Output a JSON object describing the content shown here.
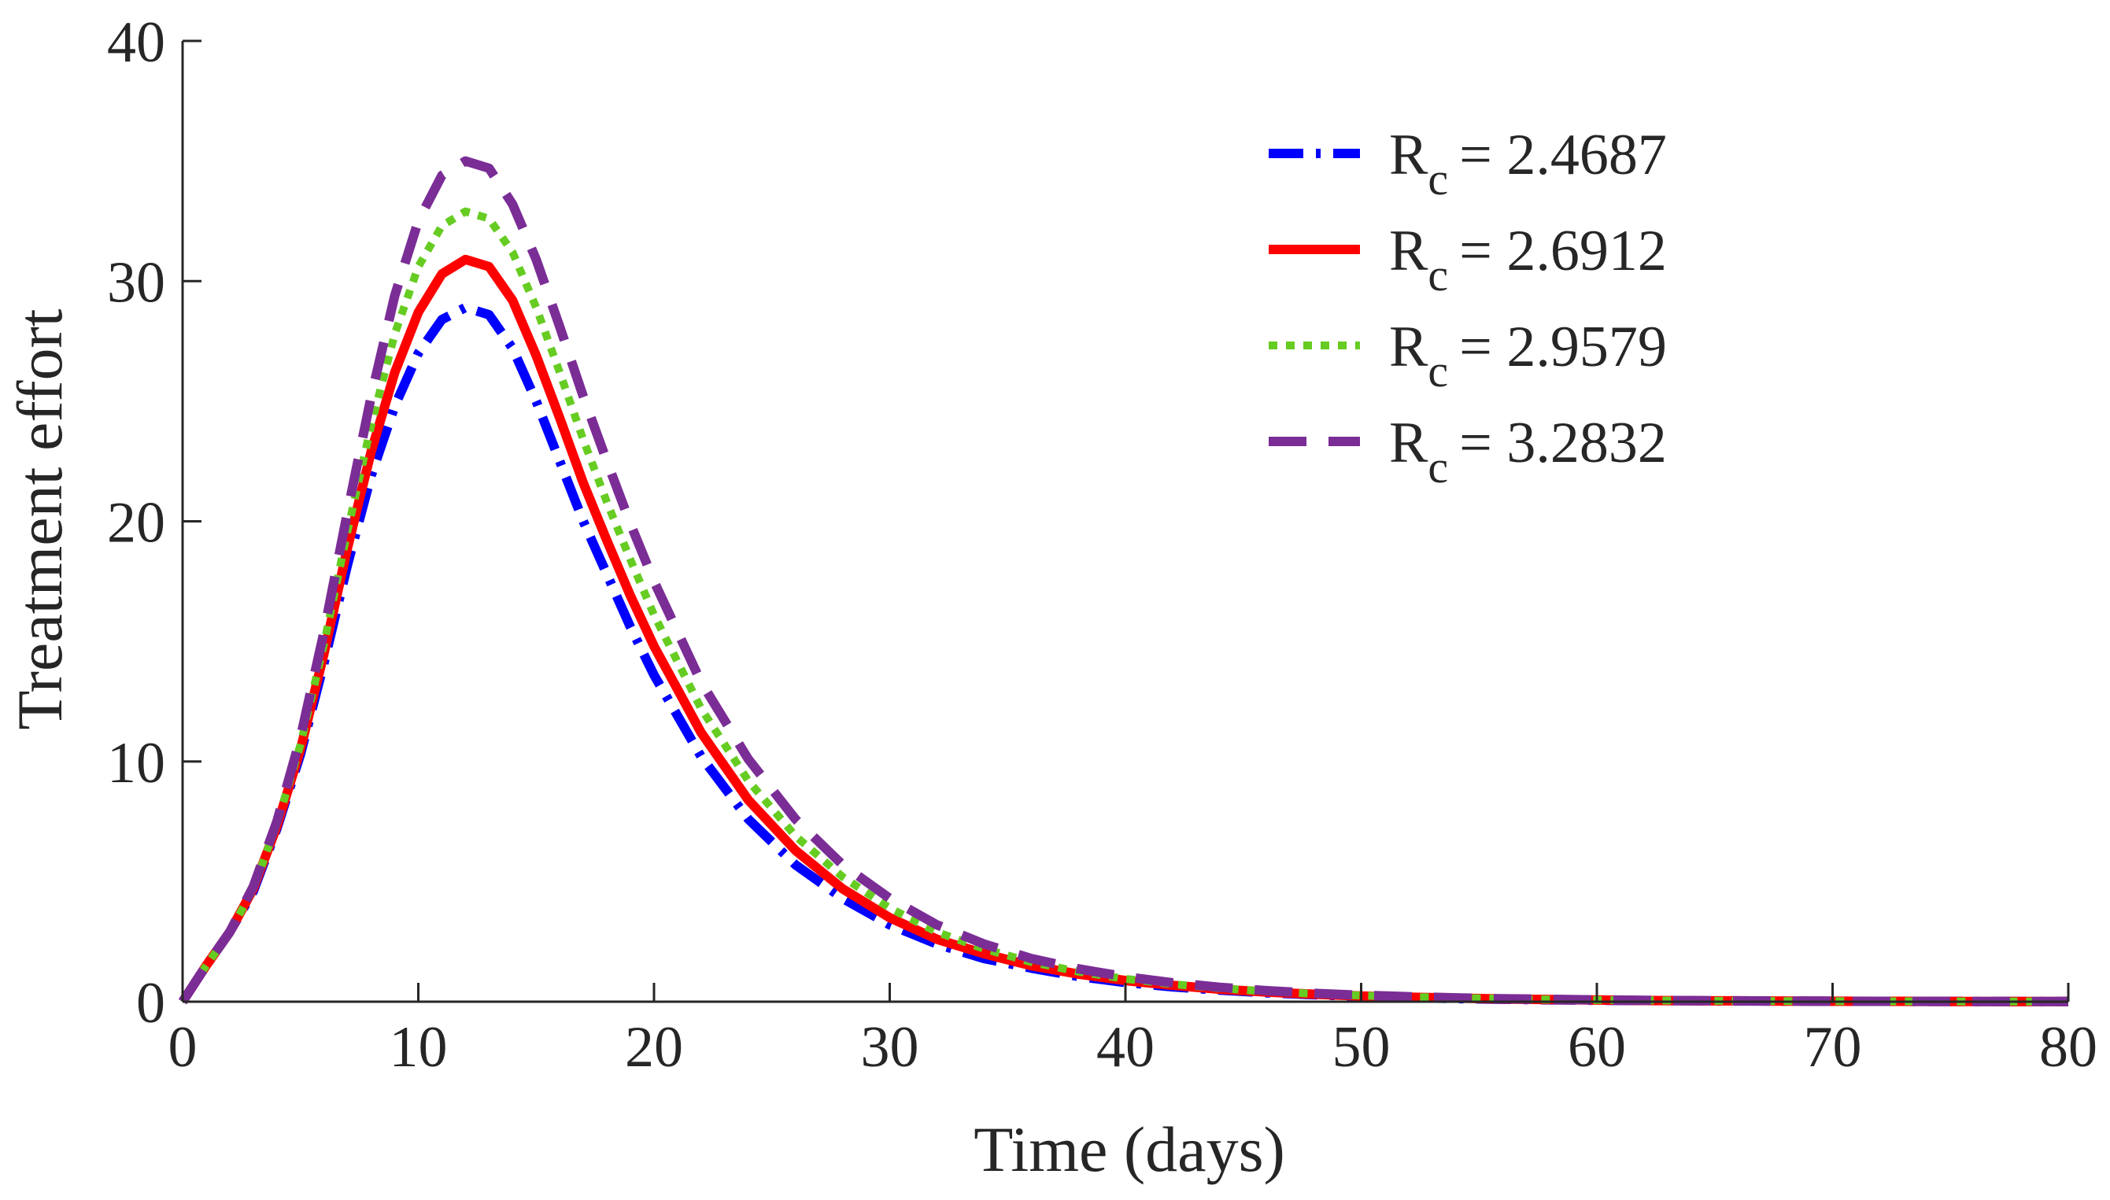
{
  "chart_data": {
    "type": "line",
    "title": "",
    "xlabel": "Time (days)",
    "ylabel": "Treatment effort",
    "xlim": [
      0,
      80
    ],
    "ylim": [
      0,
      40
    ],
    "xticks": [
      0,
      10,
      20,
      30,
      40,
      50,
      60,
      70,
      80
    ],
    "yticks": [
      0,
      10,
      20,
      30,
      40
    ],
    "xtick_labels": [
      "0",
      "10",
      "20",
      "30",
      "40",
      "50",
      "60",
      "70",
      "80"
    ],
    "ytick_labels": [
      "0",
      "10",
      "20",
      "30",
      "40"
    ],
    "grid": false,
    "legend_position": "top-right",
    "legend_symbol": "R",
    "legend_subscript": "c",
    "x": [
      0,
      1,
      2,
      3,
      4,
      5,
      6,
      7,
      8,
      9,
      10,
      11,
      12,
      13,
      14,
      15,
      16,
      17,
      18,
      19,
      20,
      22,
      24,
      26,
      28,
      30,
      32,
      34,
      36,
      38,
      40,
      42,
      44,
      46,
      48,
      50,
      52,
      54,
      56,
      58,
      60,
      62,
      64,
      66,
      68,
      70,
      72,
      74,
      76,
      78,
      80
    ],
    "series": [
      {
        "name": "R_c = 2.4687",
        "legend_value": "= 2.4687",
        "color": "#0000ff",
        "style": "dashdot",
        "values": [
          0,
          1.5,
          2.9,
          4.6,
          7.2,
          10.3,
          14.1,
          18.2,
          21.9,
          24.8,
          27.0,
          28.4,
          28.9,
          28.6,
          27.2,
          25.0,
          22.5,
          20.0,
          17.8,
          15.6,
          13.6,
          10.2,
          7.6,
          5.7,
          4.3,
          3.2,
          2.4,
          1.8,
          1.4,
          1.05,
          0.8,
          0.62,
          0.48,
          0.37,
          0.29,
          0.22,
          0.17,
          0.13,
          0.1,
          0.08,
          0.06,
          0.05,
          0.04,
          0.03,
          0.025,
          0.02,
          0.015,
          0.012,
          0.01,
          0.008,
          0.006
        ]
      },
      {
        "name": "R_c = 2.6912",
        "legend_value": "= 2.6912",
        "color": "#ff0000",
        "style": "solid",
        "values": [
          0,
          1.5,
          2.9,
          4.7,
          7.3,
          10.5,
          14.5,
          18.9,
          22.9,
          26.2,
          28.7,
          30.3,
          30.9,
          30.6,
          29.2,
          26.9,
          24.3,
          21.6,
          19.2,
          16.9,
          14.8,
          11.2,
          8.4,
          6.3,
          4.7,
          3.5,
          2.6,
          2.0,
          1.5,
          1.15,
          0.88,
          0.68,
          0.52,
          0.4,
          0.31,
          0.24,
          0.19,
          0.15,
          0.11,
          0.09,
          0.07,
          0.05,
          0.04,
          0.035,
          0.027,
          0.021,
          0.016,
          0.013,
          0.01,
          0.008,
          0.006
        ]
      },
      {
        "name": "R_c = 2.9579",
        "legend_value": "= 2.9579",
        "color": "#66cc22",
        "style": "dotted",
        "values": [
          0,
          1.5,
          2.9,
          4.7,
          7.4,
          10.7,
          14.9,
          19.6,
          24.0,
          27.8,
          30.6,
          32.3,
          32.9,
          32.6,
          31.2,
          28.9,
          26.2,
          23.4,
          20.8,
          18.4,
          16.1,
          12.2,
          9.2,
          6.9,
          5.2,
          3.9,
          2.9,
          2.2,
          1.65,
          1.25,
          0.95,
          0.73,
          0.56,
          0.43,
          0.33,
          0.26,
          0.2,
          0.16,
          0.12,
          0.09,
          0.07,
          0.055,
          0.043,
          0.034,
          0.026,
          0.02,
          0.016,
          0.012,
          0.01,
          0.008,
          0.006
        ]
      },
      {
        "name": "R_c = 3.2832",
        "legend_value": "= 3.2832",
        "color": "#7b2d96",
        "style": "longdash",
        "values": [
          0,
          1.5,
          2.9,
          4.8,
          7.5,
          11.0,
          15.4,
          20.4,
          25.2,
          29.4,
          32.5,
          34.4,
          35.0,
          34.7,
          33.2,
          30.9,
          28.1,
          25.2,
          22.5,
          19.9,
          17.5,
          13.3,
          10.1,
          7.6,
          5.7,
          4.3,
          3.2,
          2.4,
          1.8,
          1.37,
          1.04,
          0.79,
          0.6,
          0.46,
          0.35,
          0.27,
          0.21,
          0.16,
          0.12,
          0.1,
          0.075,
          0.058,
          0.045,
          0.035,
          0.027,
          0.021,
          0.016,
          0.013,
          0.01,
          0.008,
          0.006
        ]
      }
    ]
  }
}
